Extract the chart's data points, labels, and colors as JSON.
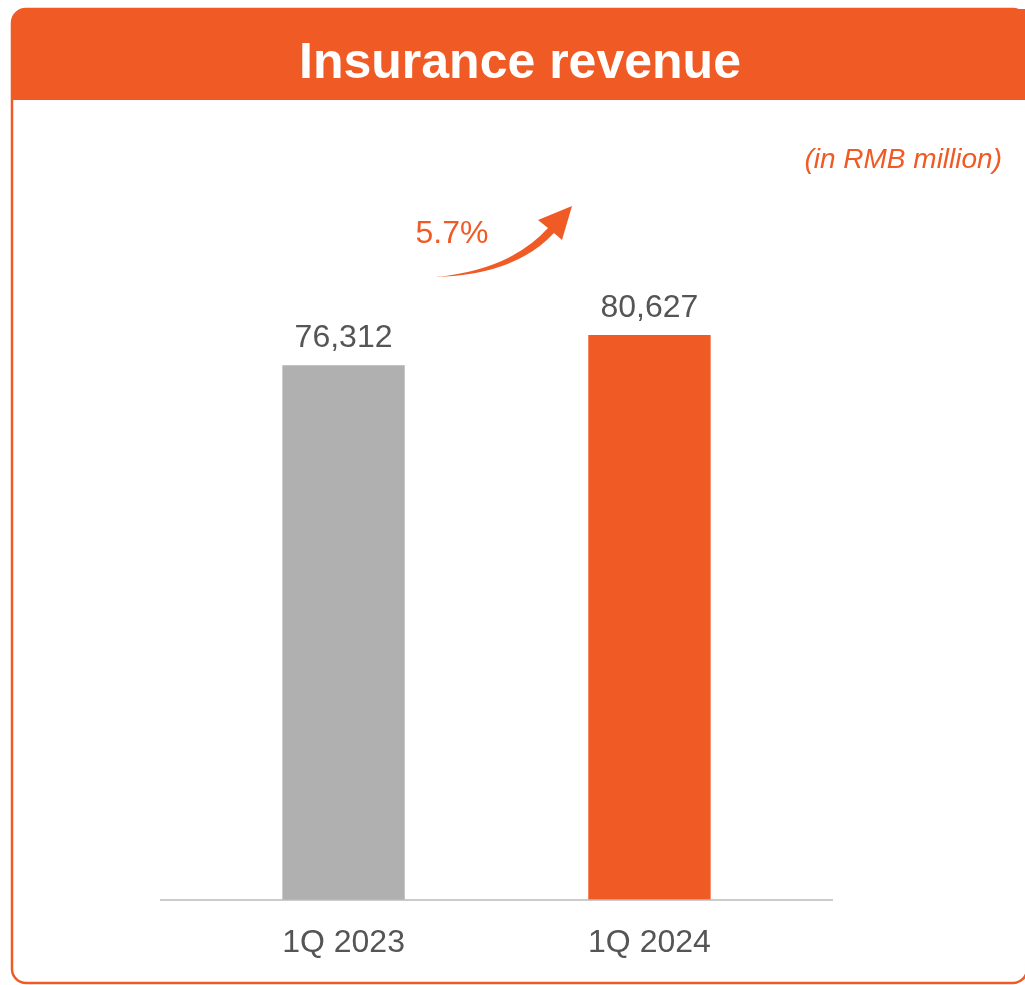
{
  "chart_data": {
    "type": "bar",
    "title": "Insurance revenue",
    "categories": [
      "1Q 2023",
      "1Q 2024"
    ],
    "values": [
      76312,
      80627
    ],
    "colors": [
      "#b0b0b0",
      "#f05a24"
    ],
    "value_labels": [
      "76,312",
      "80,627"
    ],
    "annotations": [
      "(in RMB million)",
      "5.7%"
    ]
  }
}
